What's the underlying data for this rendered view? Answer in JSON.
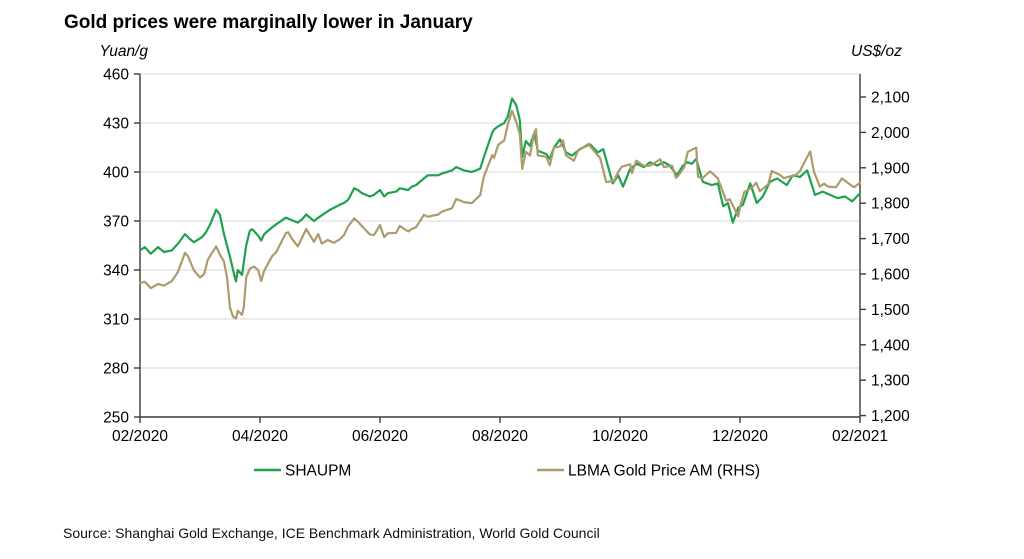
{
  "page": {
    "background": "#ffffff"
  },
  "chart_data": {
    "type": "line",
    "title": "Gold prices were marginally lower in January",
    "source": "Source: Shanghai Gold Exchange, ICE Benchmark Administration, World Gold Council",
    "grid": "horizontal-on",
    "legend_position": "bottom-center",
    "left_axis": {
      "label": "Yuan/g",
      "min": 250,
      "max": 460,
      "ticks": [
        460,
        430,
        400,
        370,
        340,
        310,
        280,
        250
      ]
    },
    "right_axis": {
      "label": "US$/oz",
      "min": 1200,
      "max": 2100,
      "ticks": [
        "2,100",
        "2,000",
        "1,900",
        "1,800",
        "1,700",
        "1,600",
        "1,500",
        "1,400",
        "1,300",
        "1,200"
      ]
    },
    "x_axis": {
      "tick_labels": [
        "02/2020",
        "04/2020",
        "06/2020",
        "08/2020",
        "10/2020",
        "12/2020",
        "02/2021"
      ],
      "tick_months": [
        0,
        2,
        4,
        6,
        8,
        10,
        12
      ],
      "range_months": [
        0,
        12
      ]
    },
    "series": [
      {
        "name": "SHAUPM",
        "axis": "left",
        "unit": "Yuan/g",
        "color": "#1fa14d",
        "points": [
          [
            0,
            352
          ],
          [
            0.08,
            354
          ],
          [
            0.18,
            350
          ],
          [
            0.3,
            354
          ],
          [
            0.4,
            351
          ],
          [
            0.53,
            352
          ],
          [
            0.63,
            356
          ],
          [
            0.75,
            362
          ],
          [
            0.83,
            359
          ],
          [
            0.9,
            357
          ],
          [
            1.03,
            360
          ],
          [
            1.1,
            363
          ],
          [
            1.17,
            368
          ],
          [
            1.27,
            377
          ],
          [
            1.33,
            374
          ],
          [
            1.4,
            362
          ],
          [
            1.5,
            348
          ],
          [
            1.57,
            337
          ],
          [
            1.6,
            333
          ],
          [
            1.63,
            340
          ],
          [
            1.7,
            337
          ],
          [
            1.77,
            355
          ],
          [
            1.83,
            364
          ],
          [
            1.87,
            365
          ],
          [
            1.97,
            361
          ],
          [
            2.02,
            358
          ],
          [
            2.07,
            362
          ],
          [
            2.2,
            366
          ],
          [
            2.27,
            368
          ],
          [
            2.43,
            372
          ],
          [
            2.5,
            371
          ],
          [
            2.63,
            369
          ],
          [
            2.7,
            371
          ],
          [
            2.77,
            374
          ],
          [
            2.9,
            370
          ],
          [
            2.97,
            372
          ],
          [
            3.17,
            377
          ],
          [
            3.23,
            378
          ],
          [
            3.33,
            380
          ],
          [
            3.4,
            381
          ],
          [
            3.47,
            383
          ],
          [
            3.57,
            390
          ],
          [
            3.63,
            389
          ],
          [
            3.7,
            387
          ],
          [
            3.83,
            385
          ],
          [
            3.9,
            386
          ],
          [
            4,
            389
          ],
          [
            4.07,
            385
          ],
          [
            4.13,
            387
          ],
          [
            4.27,
            388
          ],
          [
            4.33,
            390
          ],
          [
            4.47,
            389
          ],
          [
            4.53,
            391
          ],
          [
            4.6,
            392
          ],
          [
            4.73,
            396
          ],
          [
            4.8,
            398
          ],
          [
            4.97,
            398
          ],
          [
            5.03,
            399
          ],
          [
            5.2,
            401
          ],
          [
            5.27,
            403
          ],
          [
            5.4,
            401
          ],
          [
            5.53,
            400
          ],
          [
            5.67,
            402
          ],
          [
            5.73,
            409
          ],
          [
            5.87,
            424
          ],
          [
            5.9,
            426
          ],
          [
            5.97,
            428
          ],
          [
            6.07,
            430
          ],
          [
            6.13,
            434
          ],
          [
            6.2,
            445
          ],
          [
            6.27,
            441
          ],
          [
            6.33,
            432
          ],
          [
            6.37,
            409
          ],
          [
            6.43,
            419
          ],
          [
            6.5,
            416
          ],
          [
            6.57,
            424
          ],
          [
            6.63,
            413
          ],
          [
            6.7,
            412
          ],
          [
            6.77,
            411
          ],
          [
            6.83,
            408
          ],
          [
            6.9,
            415
          ],
          [
            7,
            420
          ],
          [
            7.1,
            412
          ],
          [
            7.2,
            410
          ],
          [
            7.33,
            414
          ],
          [
            7.5,
            417
          ],
          [
            7.63,
            412
          ],
          [
            7.72,
            414
          ],
          [
            7.88,
            393
          ],
          [
            7.97,
            398
          ],
          [
            8.05,
            391
          ],
          [
            8.17,
            402
          ],
          [
            8.28,
            405
          ],
          [
            8.4,
            403
          ],
          [
            8.5,
            406
          ],
          [
            8.62,
            404
          ],
          [
            8.73,
            406
          ],
          [
            8.83,
            404
          ],
          [
            8.95,
            398
          ],
          [
            9.05,
            404
          ],
          [
            9.12,
            406
          ],
          [
            9.2,
            405
          ],
          [
            9.27,
            408
          ],
          [
            9.38,
            394
          ],
          [
            9.53,
            392
          ],
          [
            9.63,
            393
          ],
          [
            9.72,
            379
          ],
          [
            9.8,
            381
          ],
          [
            9.88,
            369
          ],
          [
            9.97,
            378
          ],
          [
            10.05,
            380
          ],
          [
            10.17,
            393
          ],
          [
            10.28,
            381
          ],
          [
            10.38,
            385
          ],
          [
            10.5,
            394
          ],
          [
            10.62,
            396
          ],
          [
            10.78,
            392
          ],
          [
            10.88,
            398
          ],
          [
            11,
            397
          ],
          [
            11.12,
            401
          ],
          [
            11.25,
            386
          ],
          [
            11.38,
            388
          ],
          [
            11.5,
            386
          ],
          [
            11.63,
            384
          ],
          [
            11.75,
            385
          ],
          [
            11.87,
            382
          ],
          [
            12,
            387
          ]
        ]
      },
      {
        "name": "LBMA Gold Price AM (RHS)",
        "axis": "right",
        "unit": "US$/oz",
        "color": "#ac9b6c",
        "points": [
          [
            0,
            1575
          ],
          [
            0.08,
            1578
          ],
          [
            0.18,
            1560
          ],
          [
            0.3,
            1572
          ],
          [
            0.4,
            1567
          ],
          [
            0.53,
            1580
          ],
          [
            0.63,
            1605
          ],
          [
            0.75,
            1660
          ],
          [
            0.8,
            1650
          ],
          [
            0.9,
            1610
          ],
          [
            1,
            1590
          ],
          [
            1.07,
            1600
          ],
          [
            1.13,
            1640
          ],
          [
            1.2,
            1660
          ],
          [
            1.27,
            1678
          ],
          [
            1.33,
            1655
          ],
          [
            1.4,
            1635
          ],
          [
            1.45,
            1590
          ],
          [
            1.5,
            1505
          ],
          [
            1.55,
            1480
          ],
          [
            1.6,
            1474
          ],
          [
            1.63,
            1496
          ],
          [
            1.7,
            1485
          ],
          [
            1.73,
            1506
          ],
          [
            1.77,
            1590
          ],
          [
            1.83,
            1615
          ],
          [
            1.9,
            1621
          ],
          [
            1.97,
            1611
          ],
          [
            2.02,
            1580
          ],
          [
            2.07,
            1609
          ],
          [
            2.2,
            1650
          ],
          [
            2.27,
            1662
          ],
          [
            2.43,
            1715
          ],
          [
            2.47,
            1718
          ],
          [
            2.53,
            1700
          ],
          [
            2.63,
            1678
          ],
          [
            2.7,
            1702
          ],
          [
            2.77,
            1727
          ],
          [
            2.9,
            1691
          ],
          [
            2.97,
            1713
          ],
          [
            3.03,
            1686
          ],
          [
            3.13,
            1696
          ],
          [
            3.23,
            1688
          ],
          [
            3.33,
            1698
          ],
          [
            3.4,
            1710
          ],
          [
            3.47,
            1735
          ],
          [
            3.57,
            1757
          ],
          [
            3.63,
            1748
          ],
          [
            3.7,
            1735
          ],
          [
            3.83,
            1712
          ],
          [
            3.9,
            1710
          ],
          [
            4,
            1738
          ],
          [
            4.07,
            1704
          ],
          [
            4.13,
            1715
          ],
          [
            4.27,
            1716
          ],
          [
            4.33,
            1736
          ],
          [
            4.47,
            1720
          ],
          [
            4.53,
            1727
          ],
          [
            4.6,
            1732
          ],
          [
            4.73,
            1767
          ],
          [
            4.8,
            1762
          ],
          [
            4.97,
            1768
          ],
          [
            5.03,
            1776
          ],
          [
            5.2,
            1786
          ],
          [
            5.27,
            1812
          ],
          [
            5.4,
            1803
          ],
          [
            5.53,
            1800
          ],
          [
            5.67,
            1823
          ],
          [
            5.73,
            1875
          ],
          [
            5.87,
            1936
          ],
          [
            5.9,
            1928
          ],
          [
            5.97,
            1965
          ],
          [
            6.07,
            1977
          ],
          [
            6.13,
            2022
          ],
          [
            6.2,
            2061
          ],
          [
            6.27,
            2030
          ],
          [
            6.33,
            1996
          ],
          [
            6.37,
            1897
          ],
          [
            6.43,
            1945
          ],
          [
            6.5,
            1935
          ],
          [
            6.57,
            1998
          ],
          [
            6.6,
            2009
          ],
          [
            6.63,
            1935
          ],
          [
            6.77,
            1931
          ],
          [
            6.83,
            1907
          ],
          [
            6.9,
            1957
          ],
          [
            7,
            1960
          ],
          [
            7.05,
            1977
          ],
          [
            7.1,
            1935
          ],
          [
            7.23,
            1920
          ],
          [
            7.3,
            1948
          ],
          [
            7.47,
            1967
          ],
          [
            7.5,
            1962
          ],
          [
            7.57,
            1947
          ],
          [
            7.67,
            1927
          ],
          [
            7.73,
            1887
          ],
          [
            7.77,
            1860
          ],
          [
            7.9,
            1863
          ],
          [
            7.97,
            1888
          ],
          [
            8.03,
            1903
          ],
          [
            8.17,
            1910
          ],
          [
            8.2,
            1885
          ],
          [
            8.27,
            1920
          ],
          [
            8.4,
            1905
          ],
          [
            8.5,
            1906
          ],
          [
            8.67,
            1924
          ],
          [
            8.73,
            1902
          ],
          [
            8.87,
            1906
          ],
          [
            8.93,
            1872
          ],
          [
            8.97,
            1877
          ],
          [
            9.07,
            1902
          ],
          [
            9.13,
            1945
          ],
          [
            9.2,
            1951
          ],
          [
            9.27,
            1957
          ],
          [
            9.3,
            1875
          ],
          [
            9.37,
            1870
          ],
          [
            9.5,
            1890
          ],
          [
            9.57,
            1880
          ],
          [
            9.63,
            1870
          ],
          [
            9.77,
            1807
          ],
          [
            9.83,
            1811
          ],
          [
            9.97,
            1763
          ],
          [
            10,
            1789
          ],
          [
            10.07,
            1831
          ],
          [
            10.2,
            1845
          ],
          [
            10.27,
            1858
          ],
          [
            10.33,
            1834
          ],
          [
            10.47,
            1853
          ],
          [
            10.53,
            1891
          ],
          [
            10.67,
            1879
          ],
          [
            10.73,
            1871
          ],
          [
            10.93,
            1880
          ],
          [
            11,
            1891
          ],
          [
            11.1,
            1924
          ],
          [
            11.17,
            1946
          ],
          [
            11.23,
            1890
          ],
          [
            11.33,
            1847
          ],
          [
            11.4,
            1855
          ],
          [
            11.47,
            1847
          ],
          [
            11.6,
            1845
          ],
          [
            11.7,
            1870
          ],
          [
            11.83,
            1853
          ],
          [
            11.9,
            1845
          ],
          [
            12,
            1858
          ]
        ]
      }
    ]
  }
}
